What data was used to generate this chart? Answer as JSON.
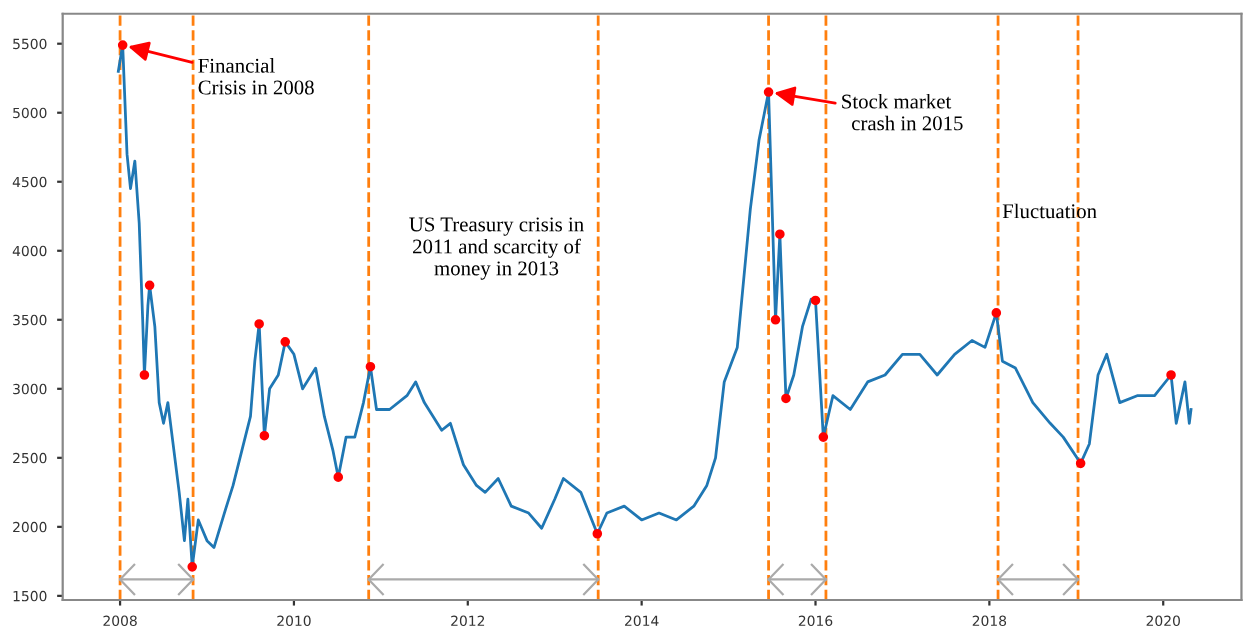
{
  "chart_data": {
    "type": "line",
    "xlim": [
      2007.34,
      2020.9
    ],
    "ylim": [
      1470,
      5717
    ],
    "xticks": [
      2008,
      2010,
      2012,
      2014,
      2016,
      2018,
      2020
    ],
    "yticks": [
      1500,
      2000,
      2500,
      3000,
      3500,
      4000,
      4500,
      5000,
      5500
    ],
    "grid": false,
    "series": [
      {
        "color": "#1f77b4",
        "x": [
          2007.98,
          2008.03,
          2008.08,
          2008.12,
          2008.17,
          2008.22,
          2008.26,
          2008.28,
          2008.32,
          2008.34,
          2008.4,
          2008.45,
          2008.5,
          2008.55,
          2008.6,
          2008.68,
          2008.74,
          2008.78,
          2008.83,
          2008.9,
          2009.0,
          2009.08,
          2009.2,
          2009.3,
          2009.4,
          2009.5,
          2009.55,
          2009.6,
          2009.66,
          2009.72,
          2009.82,
          2009.9,
          2010.0,
          2010.1,
          2010.25,
          2010.35,
          2010.45,
          2010.51,
          2010.6,
          2010.7,
          2010.8,
          2010.88,
          2010.95,
          2011.1,
          2011.3,
          2011.4,
          2011.5,
          2011.7,
          2011.8,
          2011.95,
          2012.1,
          2012.2,
          2012.35,
          2012.5,
          2012.7,
          2012.85,
          2013.0,
          2013.1,
          2013.3,
          2013.49,
          2013.6,
          2013.8,
          2014.0,
          2014.2,
          2014.4,
          2014.6,
          2014.75,
          2014.85,
          2014.95,
          2015.1,
          2015.25,
          2015.35,
          2015.46,
          2015.54,
          2015.59,
          2015.66,
          2015.75,
          2015.85,
          2015.95,
          2016.0,
          2016.09,
          2016.2,
          2016.4,
          2016.6,
          2016.8,
          2017.0,
          2017.2,
          2017.4,
          2017.6,
          2017.8,
          2017.95,
          2018.08,
          2018.15,
          2018.3,
          2018.5,
          2018.7,
          2018.85,
          2019.05,
          2019.15,
          2019.25,
          2019.35,
          2019.5,
          2019.7,
          2019.9,
          2020.09,
          2020.15,
          2020.25,
          2020.3,
          2020.32
        ],
        "values": [
          5300,
          5490,
          4700,
          4450,
          4650,
          4200,
          3500,
          3100,
          3600,
          3750,
          3450,
          2900,
          2750,
          2900,
          2650,
          2250,
          1900,
          2200,
          1710,
          2050,
          1900,
          1850,
          2100,
          2300,
          2550,
          2800,
          3200,
          3470,
          2660,
          3000,
          3100,
          3340,
          3250,
          3000,
          3150,
          2800,
          2550,
          2360,
          2650,
          2650,
          2900,
          3160,
          2850,
          2850,
          2950,
          3050,
          2900,
          2700,
          2750,
          2450,
          2300,
          2250,
          2350,
          2150,
          2100,
          1990,
          2200,
          2350,
          2250,
          1950,
          2100,
          2150,
          2050,
          2100,
          2050,
          2150,
          2300,
          2500,
          3050,
          3300,
          4300,
          4800,
          5150,
          3500,
          4120,
          2930,
          3100,
          3450,
          3650,
          3640,
          2650,
          2950,
          2850,
          3050,
          3100,
          3250,
          3250,
          3100,
          3250,
          3350,
          3300,
          3550,
          3200,
          3150,
          2900,
          2750,
          2650,
          2460,
          2600,
          3100,
          3250,
          2900,
          2950,
          2950,
          3100,
          2750,
          3050,
          2750,
          2850
        ]
      },
      {
        "type": "scatter",
        "color": "#ff0000",
        "marker": "circle",
        "x": [
          2008.03,
          2008.34,
          2008.28,
          2008.83,
          2009.6,
          2009.66,
          2009.9,
          2010.51,
          2010.88,
          2013.49,
          2015.46,
          2015.59,
          2015.54,
          2015.66,
          2016.0,
          2016.09,
          2018.08,
          2019.05,
          2020.09
        ],
        "values": [
          5490,
          3750,
          3100,
          1710,
          3470,
          2660,
          3340,
          2360,
          3160,
          1950,
          5150,
          4120,
          3500,
          2930,
          3640,
          2650,
          3550,
          2460,
          3100
        ]
      }
    ],
    "ref_lines": [
      {
        "axis": "x",
        "value": 2008.0,
        "color": "#ff7f0e",
        "line_style": "dashed"
      },
      {
        "axis": "x",
        "value": 2008.84,
        "color": "#ff7f0e",
        "line_style": "dashed"
      },
      {
        "axis": "x",
        "value": 2010.86,
        "color": "#ff7f0e",
        "line_style": "dashed"
      },
      {
        "axis": "x",
        "value": 2013.5,
        "color": "#ff7f0e",
        "line_style": "dashed"
      },
      {
        "axis": "x",
        "value": 2015.46,
        "color": "#ff7f0e",
        "line_style": "dashed"
      },
      {
        "axis": "x",
        "value": 2016.12,
        "color": "#ff7f0e",
        "line_style": "dashed"
      },
      {
        "axis": "x",
        "value": 2018.1,
        "color": "#ff7f0e",
        "line_style": "dashed"
      },
      {
        "axis": "x",
        "value": 2019.02,
        "color": "#ff7f0e",
        "line_style": "dashed"
      }
    ],
    "annotations": [
      {
        "text": "Financial\nCrisis in 2008",
        "x": 2008.03,
        "y": 5490
      },
      {
        "text": "Stock market\n  crash in 2015",
        "x": 2015.46,
        "y": 5150
      },
      "US Treasury crisis in\n2011 and scarcity of\nmoney in 2013",
      "Fluctuation"
    ]
  }
}
